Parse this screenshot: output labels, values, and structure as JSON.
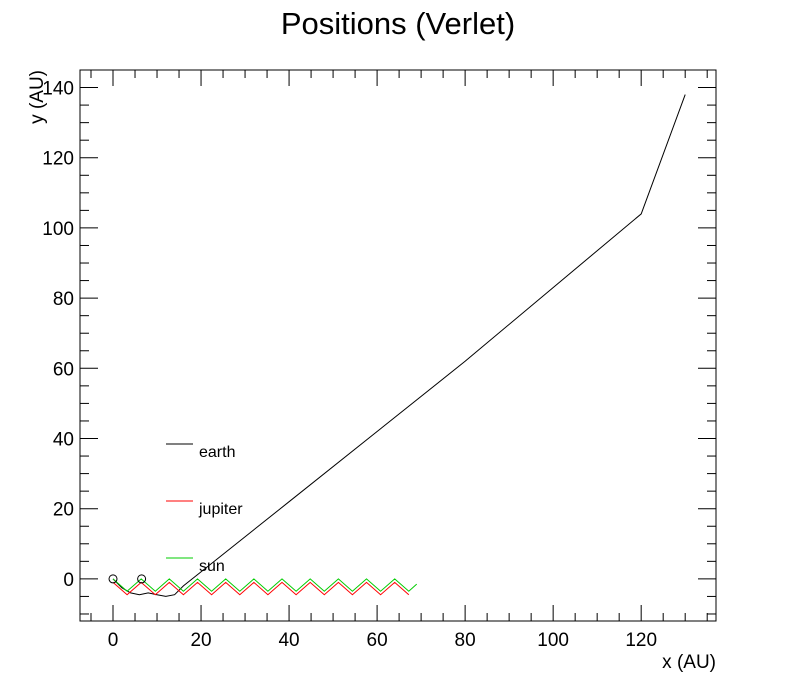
{
  "chart_data": {
    "type": "line",
    "title": "Positions (Verlet)",
    "xlabel": "x (AU)",
    "ylabel": "y (AU)",
    "xlim": [
      -7.5,
      137
    ],
    "ylim": [
      -12,
      145
    ],
    "x_ticks": [
      0,
      20,
      40,
      60,
      80,
      100,
      120
    ],
    "x_tick_labels": [
      "0",
      "20",
      "40",
      "60",
      "80",
      "100",
      "120"
    ],
    "y_ticks": [
      0,
      20,
      40,
      60,
      80,
      100,
      120,
      140
    ],
    "y_tick_labels": [
      "0",
      "20",
      "40",
      "60",
      "80",
      "100",
      "120",
      "140"
    ],
    "grid": false,
    "legend_placement": "lower-left",
    "series": [
      {
        "name": "earth",
        "color": "#000000",
        "x": [
          0,
          2,
          4,
          6,
          8,
          10,
          12,
          14,
          16,
          20,
          40,
          60,
          80,
          100,
          120,
          130
        ],
        "y": [
          0,
          -2.5,
          -4,
          -4.5,
          -4,
          -4.5,
          -5,
          -4.5,
          -2,
          2,
          22,
          42,
          62,
          83,
          104,
          138
        ]
      },
      {
        "name": "jupiter",
        "color": "#ff0000",
        "x": [
          0,
          3.2,
          6.4,
          9.6,
          12.8,
          16,
          19.2,
          22.4,
          25.6,
          28.8,
          32,
          35.2,
          38.4,
          41.6,
          44.8,
          48,
          51.2,
          54.4,
          57.6,
          60.8,
          64,
          67.2
        ],
        "y": [
          -1,
          -4.5,
          -1,
          -4.5,
          -1,
          -4.5,
          -1,
          -4.5,
          -1,
          -4.5,
          -1,
          -4.5,
          -1,
          -4.5,
          -1,
          -4.5,
          -1,
          -4.5,
          -1,
          -4.5,
          -1,
          -4.5
        ]
      },
      {
        "name": "sun",
        "color": "#00cc00",
        "x": [
          0,
          3.2,
          6.4,
          9.6,
          12.8,
          16,
          19.2,
          22.4,
          25.6,
          28.8,
          32,
          35.2,
          38.4,
          41.6,
          44.8,
          48,
          51.2,
          54.4,
          57.6,
          60.8,
          64,
          67.2,
          69
        ],
        "y": [
          0,
          -3.5,
          0,
          -3.5,
          0,
          -3.5,
          0,
          -3.5,
          0,
          -3.5,
          0,
          -3.5,
          0,
          -3.5,
          0,
          -3.5,
          0,
          -3.5,
          0,
          -3.5,
          0,
          -3.5,
          -1.5
        ]
      }
    ]
  }
}
